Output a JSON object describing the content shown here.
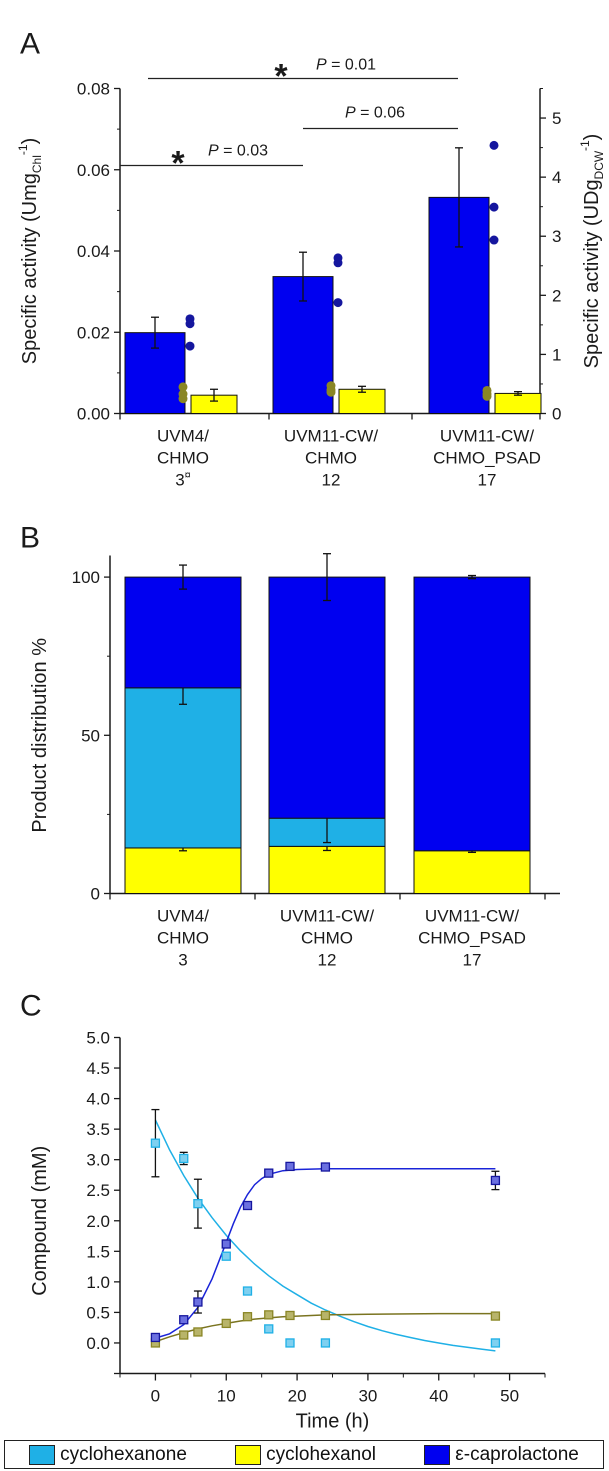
{
  "colors": {
    "cyclohexanone": "#1fb0e6",
    "cyclohexanol": "#ffff00",
    "caprolactone": "#0000f0",
    "cyclohexanol_marker": "#8a8625",
    "caprolactone_marker": "#15169e",
    "axis": "#1a1a1a"
  },
  "chart_data": [
    {
      "panel": "A",
      "type": "bar",
      "categories": [
        [
          "UVM4/",
          "CHMO",
          "3"
        ],
        [
          "UVM11-CW/",
          "CHMO",
          "12"
        ],
        [
          "UVM11-CW/",
          "CHMO_PSAD",
          "17"
        ]
      ],
      "category_marks": [
        "¤",
        "",
        ""
      ],
      "ylabel_left": {
        "main": "Specific activity (Umg",
        "sub": "Chl",
        "sup": "-1",
        "close": ")"
      },
      "ylabel_right": {
        "main": "Specific activity  (UDg",
        "sub": "DCW",
        "sup": "-1",
        "close": ")"
      },
      "ylim_left": [
        0,
        0.08
      ],
      "yticks_left": [
        "0.00",
        "0.02",
        "0.04",
        "0.06",
        "0.08"
      ],
      "ylim_right": [
        0,
        5.5
      ],
      "yticks_right": [
        "0",
        "1",
        "2",
        "3",
        "4",
        "5"
      ],
      "series": [
        {
          "axis": "left",
          "color_key": "caprolactone",
          "values": [
            0.0199,
            0.0337,
            0.0532
          ],
          "errors": [
            0.0038,
            0.006,
            0.0122
          ],
          "points": [
            [
              0.0233,
              0.0221,
              0.0166
            ],
            [
              0.0383,
              0.0371,
              0.0273
            ],
            [
              0.066,
              0.0508,
              0.0427
            ]
          ]
        },
        {
          "axis": "right",
          "color_key": "cyclohexanol",
          "values": [
            0.31,
            0.41,
            0.34
          ],
          "errors": [
            0.1,
            0.05,
            0.03
          ],
          "points": [
            [
              0.45,
              0.33,
              0.25
            ],
            [
              0.47,
              0.4,
              0.36
            ],
            [
              0.39,
              0.33,
              0.29
            ]
          ]
        }
      ],
      "significance": [
        {
          "from": 0,
          "to": 1,
          "star": "*",
          "p_label": "P",
          "p_text": " = 0.03"
        },
        {
          "from": 1,
          "to": 2,
          "star": "",
          "p_label": "P",
          "p_text": " = 0.06"
        },
        {
          "from": 0,
          "to": 2,
          "star": "*",
          "p_label": "P",
          "p_text": " = 0.01"
        }
      ]
    },
    {
      "panel": "B",
      "type": "bar",
      "stacked": true,
      "categories": [
        [
          "UVM4/",
          "CHMO",
          "3"
        ],
        [
          "UVM11-CW/",
          "CHMO",
          "12"
        ],
        [
          "UVM11-CW/",
          "CHMO_PSAD",
          "17"
        ]
      ],
      "ylabel": "Product distribution %",
      "ylim": [
        0,
        110
      ],
      "yticks": [
        "0",
        "50",
        "100"
      ],
      "series": [
        {
          "color_key": "cyclohexanol",
          "values": [
            14.4,
            14.9,
            13.5
          ],
          "errors": [
            0.9,
            1.3,
            0.5
          ]
        },
        {
          "color_key": "cyclohexanone",
          "values": [
            50.6,
            8.9,
            0
          ],
          "errors": [
            5.2,
            7.7,
            0
          ]
        },
        {
          "color_key": "caprolactone",
          "values": [
            35.0,
            76.2,
            86.5
          ],
          "errors": [
            3.8,
            7.4,
            0.5
          ]
        }
      ]
    },
    {
      "panel": "C",
      "type": "scatter",
      "xlabel": "Time (h)",
      "ylabel": "Compound (mM)",
      "xlim": [
        -5,
        55
      ],
      "ylim": [
        -0.5,
        5.0
      ],
      "xticks": [
        "0",
        "10",
        "20",
        "30",
        "40",
        "50"
      ],
      "yticks": [
        "0.0",
        "0.5",
        "1.0",
        "1.5",
        "2.0",
        "2.5",
        "3.0",
        "3.5",
        "4.0",
        "4.5",
        "5.0"
      ],
      "series": [
        {
          "name": "cyclohexanone",
          "color_key": "cyclohexanone",
          "x": [
            0,
            4,
            6,
            10,
            13,
            16,
            19,
            24,
            48
          ],
          "y": [
            3.27,
            3.02,
            2.28,
            1.42,
            0.85,
            0.23,
            0.0,
            0.0,
            0.0
          ],
          "err": [
            0.55,
            0.1,
            0.4,
            0,
            0,
            0,
            0,
            0,
            0
          ],
          "fit": [
            [
              0,
              3.65
            ],
            [
              2,
              3.16
            ],
            [
              4,
              2.74
            ],
            [
              6,
              2.37
            ],
            [
              8,
              2.05
            ],
            [
              10,
              1.76
            ],
            [
              12,
              1.51
            ],
            [
              14,
              1.29
            ],
            [
              16,
              1.1
            ],
            [
              18,
              0.93
            ],
            [
              20,
              0.79
            ],
            [
              22,
              0.65
            ],
            [
              24,
              0.54
            ],
            [
              26,
              0.44
            ],
            [
              28,
              0.35
            ],
            [
              30,
              0.27
            ],
            [
              32,
              0.2
            ],
            [
              34,
              0.14
            ],
            [
              36,
              0.09
            ],
            [
              38,
              0.04
            ],
            [
              40,
              0.0
            ],
            [
              42,
              -0.04
            ],
            [
              44,
              -0.07
            ],
            [
              46,
              -0.1
            ],
            [
              48,
              -0.13
            ]
          ]
        },
        {
          "name": "cyclohexanol",
          "color_key": "cyclohexanol_marker",
          "x": [
            0,
            4,
            6,
            10,
            13,
            16,
            19,
            24,
            48
          ],
          "y": [
            0.0,
            0.13,
            0.18,
            0.32,
            0.43,
            0.46,
            0.45,
            0.45,
            0.44
          ],
          "err": [
            0,
            0,
            0,
            0,
            0,
            0,
            0,
            0,
            0
          ],
          "fit": [
            [
              0,
              0.02
            ],
            [
              2,
              0.1
            ],
            [
              4,
              0.17
            ],
            [
              6,
              0.23
            ],
            [
              8,
              0.28
            ],
            [
              10,
              0.32
            ],
            [
              12,
              0.36
            ],
            [
              14,
              0.39
            ],
            [
              16,
              0.41
            ],
            [
              18,
              0.43
            ],
            [
              20,
              0.44
            ],
            [
              24,
              0.46
            ],
            [
              30,
              0.47
            ],
            [
              40,
              0.48
            ],
            [
              48,
              0.48
            ]
          ]
        },
        {
          "name": "ε-caprolactone",
          "color_key": "caprolactone_marker",
          "x": [
            0,
            4,
            6,
            10,
            13,
            16,
            19,
            24,
            48
          ],
          "y": [
            0.09,
            0.38,
            0.67,
            1.62,
            2.25,
            2.78,
            2.89,
            2.88,
            2.66
          ],
          "err": [
            0,
            0,
            0.18,
            0,
            0,
            0,
            0,
            0,
            0.15
          ],
          "fit": [
            [
              0,
              0.08
            ],
            [
              2,
              0.15
            ],
            [
              4,
              0.3
            ],
            [
              6,
              0.58
            ],
            [
              8,
              1.05
            ],
            [
              10,
              1.65
            ],
            [
              11,
              1.95
            ],
            [
              12,
              2.22
            ],
            [
              13,
              2.43
            ],
            [
              14,
              2.59
            ],
            [
              15,
              2.69
            ],
            [
              16,
              2.76
            ],
            [
              18,
              2.82
            ],
            [
              20,
              2.84
            ],
            [
              24,
              2.85
            ],
            [
              30,
              2.85
            ],
            [
              40,
              2.85
            ],
            [
              48,
              2.85
            ]
          ]
        }
      ]
    }
  ],
  "panels": {
    "a": "A",
    "b": "B",
    "c": "C"
  },
  "legend": [
    {
      "label": "cyclohexanone",
      "color_key": "cyclohexanone"
    },
    {
      "label": "cyclohexanol",
      "color_key": "cyclohexanol"
    },
    {
      "label": "ε-caprolactone",
      "color_key": "caprolactone"
    }
  ]
}
